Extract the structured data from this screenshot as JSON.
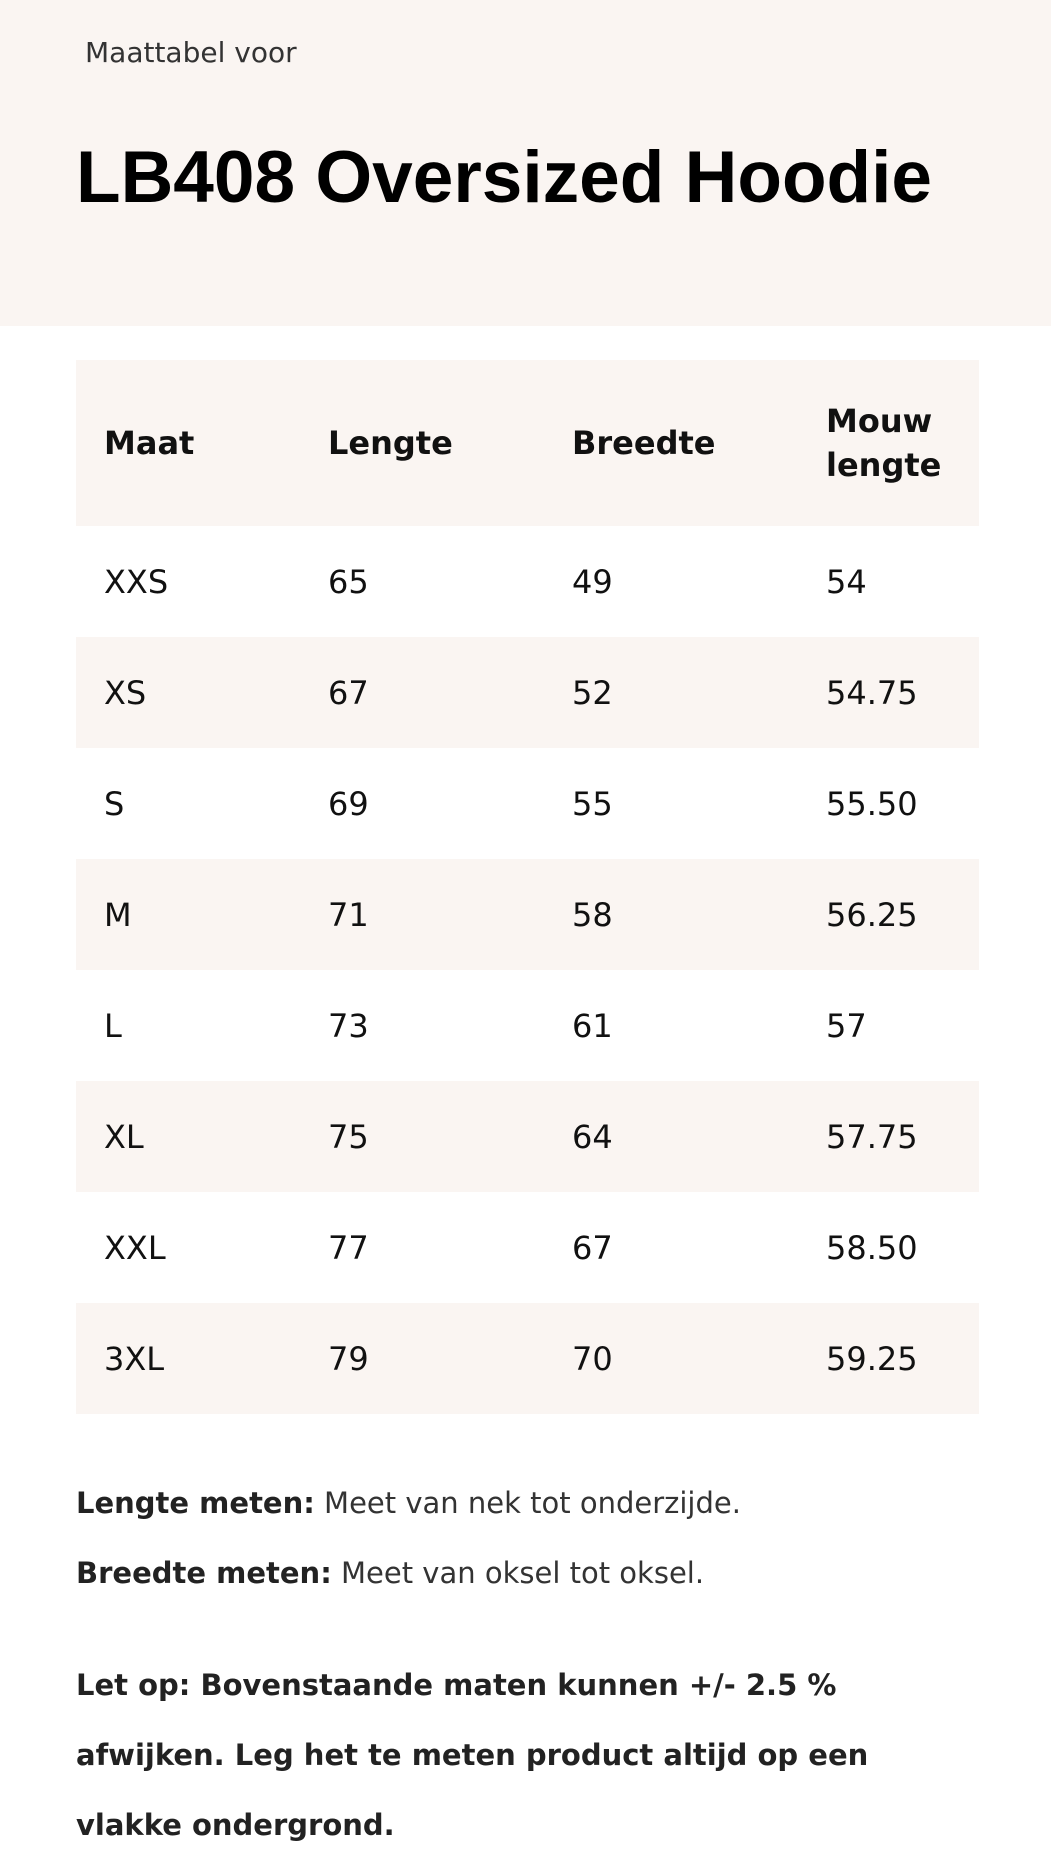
{
  "header": {
    "subtitle": "Maattabel voor",
    "title": "LB408 Oversized Hoodie"
  },
  "table": {
    "headers": [
      "Maat",
      "Lengte",
      "Breedte",
      "Mouw lengte"
    ],
    "rows": [
      [
        "XXS",
        "65",
        "49",
        "54"
      ],
      [
        "XS",
        "67",
        "52",
        "54.75"
      ],
      [
        "S",
        "69",
        "55",
        "55.50"
      ],
      [
        "M",
        "71",
        "58",
        "56.25"
      ],
      [
        "L",
        "73",
        "61",
        "57"
      ],
      [
        "XL",
        "75",
        "64",
        "57.75"
      ],
      [
        "XXL",
        "77",
        "67",
        "58.50"
      ],
      [
        "3XL",
        "79",
        "70",
        "59.25"
      ]
    ]
  },
  "notes": {
    "length_label": "Lengte meten:",
    "length_text": " Meet van nek tot onderzijde.",
    "width_label": "Breedte meten:",
    "width_text": " Meet van oksel tot oksel.",
    "warning": "Let op: Bovenstaande maten kunnen +/- 2.5 % afwijken. Leg het te meten product altijd op een vlakke ondergrond."
  },
  "colors": {
    "background_accent": "#faf5f2"
  }
}
